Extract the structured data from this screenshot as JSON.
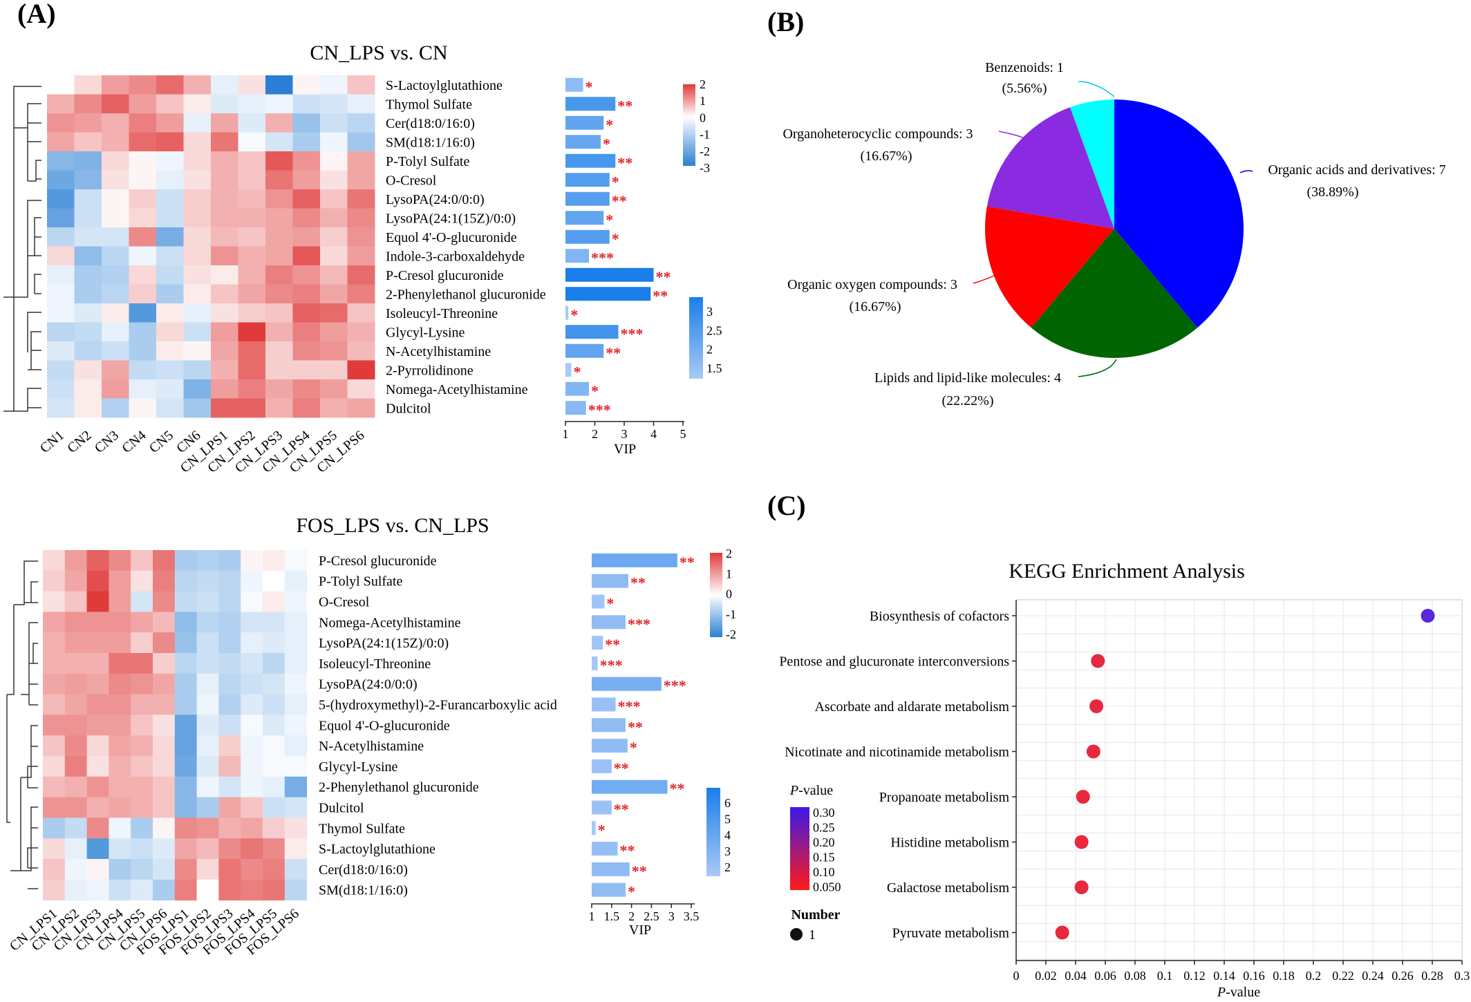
{
  "panel_labels": {
    "a": "(A)",
    "b": "(B)",
    "c": "(C)"
  },
  "chart_data": [
    {
      "id": "heatmap1",
      "type": "heatmap",
      "title": "CN_LPS vs. CN",
      "columns": [
        "CN1",
        "CN2",
        "CN3",
        "CN4",
        "CN5",
        "CN6",
        "CN_LPS1",
        "CN_LPS2",
        "CN_LPS3",
        "CN_LPS4",
        "CN_LPS5",
        "CN_LPS6"
      ],
      "rows": [
        "S-Lactoylglutathione",
        "Thymol Sulfate",
        "Cer(d18:0/16:0)",
        "SM(d18:1/16:0)",
        "P-Tolyl Sulfate",
        "O-Cresol",
        "LysoPA(24:0/0:0)",
        "LysoPA(24:1(15Z)/0:0)",
        "Equol 4'-O-glucuronide",
        "Indole-3-carboxaldehyde",
        "P-Cresol glucuronide",
        "2-Phenylethanol glucuronide",
        "Isoleucyl-Threonine",
        "Glycyl-Lysine",
        "N-Acetylhistamine",
        "2-Pyrrolidinone",
        "Nomega-Acetylhistamine",
        "Dulcitol"
      ],
      "values": [
        [
          0,
          0.4,
          1.0,
          1.2,
          1.5,
          0.8,
          -0.3,
          0.3,
          -2.8,
          0.1,
          -0.2,
          0.6
        ],
        [
          0.8,
          1.2,
          1.6,
          1.0,
          0.6,
          0.2,
          -0.4,
          -0.3,
          -0.2,
          -0.6,
          -0.5,
          -0.3
        ],
        [
          1.1,
          1.0,
          0.8,
          1.3,
          1.0,
          -0.3,
          0.9,
          -0.4,
          0.8,
          -1.2,
          -0.6,
          -0.8
        ],
        [
          0.9,
          0.6,
          0.8,
          1.5,
          1.6,
          0.4,
          1.4,
          -0.1,
          -0.5,
          -1.0,
          -0.2,
          -1.1
        ],
        [
          -1.4,
          -1.5,
          0.4,
          0.1,
          -0.2,
          0.4,
          0.8,
          0.6,
          1.7,
          1.1,
          0.1,
          0.9
        ],
        [
          -1.7,
          -1.4,
          0.3,
          0.1,
          -0.3,
          0.3,
          0.8,
          0.6,
          1.4,
          1.0,
          0.3,
          0.9
        ],
        [
          -2.0,
          -0.6,
          0.1,
          0.5,
          -0.6,
          0.5,
          0.8,
          0.7,
          1.1,
          1.6,
          0.6,
          1.4
        ],
        [
          -1.8,
          -0.6,
          0.1,
          0.4,
          -0.6,
          0.5,
          0.8,
          0.8,
          0.9,
          1.2,
          0.8,
          1.2
        ],
        [
          -0.8,
          -0.5,
          -0.5,
          1.2,
          -1.6,
          0.4,
          0.7,
          0.6,
          0.9,
          1.0,
          0.5,
          1.1
        ],
        [
          0.4,
          -1.3,
          -0.8,
          -0.2,
          -0.6,
          0.4,
          1.1,
          0.8,
          0.9,
          1.7,
          0.4,
          1.0
        ],
        [
          -0.3,
          -1.0,
          -0.9,
          0.4,
          -0.7,
          0.3,
          0.2,
          0.8,
          1.3,
          1.1,
          0.7,
          1.5
        ],
        [
          -0.2,
          -1.0,
          -0.8,
          0.5,
          -1.0,
          0.2,
          0.6,
          0.9,
          1.2,
          1.3,
          0.9,
          1.3
        ],
        [
          -0.2,
          -0.4,
          0.2,
          -2.0,
          0.2,
          -0.3,
          0.3,
          0.5,
          0.6,
          1.6,
          1.5,
          0.6
        ],
        [
          -0.8,
          -0.7,
          -0.3,
          -1.0,
          0.4,
          -0.6,
          1.0,
          2.0,
          0.8,
          1.3,
          1.0,
          0.8
        ],
        [
          -0.4,
          -0.8,
          -0.6,
          -1.0,
          0.2,
          0.1,
          0.9,
          1.5,
          0.5,
          1.2,
          1.1,
          0.7
        ],
        [
          -0.7,
          0.3,
          0.9,
          -0.7,
          -0.6,
          -0.8,
          0.8,
          1.5,
          0.5,
          0.5,
          0.5,
          2.3
        ],
        [
          -0.6,
          0.2,
          1.0,
          -0.3,
          -0.4,
          -1.5,
          1.0,
          1.3,
          0.9,
          1.2,
          1.0,
          0.4
        ],
        [
          -0.5,
          0.2,
          -0.9,
          0.1,
          -0.5,
          -1.1,
          1.6,
          1.6,
          0.8,
          1.3,
          0.8,
          0.9
        ]
      ],
      "color_scale": {
        "ticks": [
          "2",
          "1",
          "0",
          "-1",
          "-2",
          "-3"
        ],
        "low": "#2a7fd4",
        "mid": "#ffffff",
        "high": "#e03a3a"
      }
    },
    {
      "id": "vip1",
      "type": "bar",
      "orientation": "horizontal",
      "categories": [
        "S-Lactoylglutathione",
        "Thymol Sulfate",
        "Cer(d18:0/16:0)",
        "SM(d18:1/16:0)",
        "P-Tolyl Sulfate",
        "O-Cresol",
        "LysoPA(24:0/0:0)",
        "LysoPA(24:1(15Z)/0:0)",
        "Equol 4'-O-glucuronide",
        "Indole-3-carboxaldehyde",
        "P-Cresol glucuronide",
        "2-Phenylethanol glucuronide",
        "Isoleucyl-Threonine",
        "Glycyl-Lysine",
        "N-Acetylhistamine",
        "2-Pyrrolidinone",
        "Nomega-Acetylhistamine",
        "Dulcitol"
      ],
      "values": [
        1.6,
        2.7,
        2.3,
        2.2,
        2.7,
        2.5,
        2.5,
        2.3,
        2.5,
        1.8,
        4.0,
        3.9,
        1.1,
        2.8,
        2.3,
        1.2,
        1.8,
        1.7
      ],
      "significance": [
        "*",
        "**",
        "*",
        "*",
        "**",
        "*",
        "**",
        "*",
        "*",
        "***",
        "**",
        "**",
        "*",
        "***",
        "**",
        "*",
        "*",
        "***"
      ],
      "xlabel": "VIP",
      "xticks": [
        "1",
        "2",
        "3",
        "4",
        "5"
      ],
      "xlim": [
        1,
        5
      ],
      "color_scale": {
        "ticks": [
          "3",
          "2.5",
          "2",
          "1.5"
        ],
        "min": 1.2,
        "max": 3.4
      }
    },
    {
      "id": "heatmap2",
      "type": "heatmap",
      "title": "FOS_LPS vs. CN_LPS",
      "columns": [
        "CN_LPS1",
        "CN_LPS2",
        "CN_LPS3",
        "CN_LPS4",
        "CN_LPS5",
        "CN_LPS6",
        "FOS_LPS1",
        "FOS_LPS2",
        "FOS_LPS3",
        "FOS_LPS4",
        "FOS_LPS5",
        "FOS_LPS6"
      ],
      "rows": [
        "P-Cresol glucuronide",
        "P-Tolyl Sulfate",
        "O-Cresol",
        "Nomega-Acetylhistamine",
        "LysoPA(24:1(15Z)/0:0)",
        "Isoleucyl-Threonine",
        "LysoPA(24:0/0:0)",
        "5-(hydroxymethyl)-2-Furancarboxylic acid",
        "Equol 4'-O-glucuronide",
        "N-Acetylhistamine",
        "Glycyl-Lysine",
        "2-Phenylethanol glucuronide",
        "Dulcitol",
        "Thymol Sulfate",
        "S-Lactoylglutathione",
        "Cer(d18:0/16:0)",
        "SM(d18:1/16:0)"
      ],
      "values": [
        [
          0.4,
          1.0,
          1.6,
          1.2,
          0.6,
          1.4,
          -1.0,
          -0.9,
          -1.0,
          0.1,
          0.2,
          -0.1
        ],
        [
          0.5,
          0.9,
          1.8,
          1.0,
          0.3,
          1.3,
          -0.8,
          -0.7,
          -0.8,
          -0.2,
          0.0,
          -0.3
        ],
        [
          0.3,
          0.6,
          2.0,
          1.0,
          -0.5,
          1.2,
          -0.7,
          -0.6,
          -0.8,
          -0.1,
          0.2,
          -0.2
        ],
        [
          0.9,
          1.1,
          1.1,
          1.1,
          0.9,
          0.7,
          -1.3,
          -0.8,
          -0.9,
          -0.5,
          -0.5,
          -0.3
        ],
        [
          0.8,
          1.0,
          1.0,
          1.0,
          0.5,
          1.2,
          -1.2,
          -0.6,
          -0.9,
          -0.3,
          -0.4,
          -0.3
        ],
        [
          0.8,
          0.8,
          0.8,
          1.4,
          1.4,
          0.5,
          -0.8,
          -0.6,
          -0.7,
          -0.5,
          -0.8,
          -0.3
        ],
        [
          0.9,
          1.0,
          0.9,
          1.2,
          1.1,
          0.9,
          -1.0,
          -0.3,
          -0.8,
          -0.6,
          -0.5,
          -0.2
        ],
        [
          0.7,
          0.9,
          1.1,
          1.1,
          0.8,
          0.8,
          -1.0,
          -0.2,
          -0.9,
          -0.4,
          -0.6,
          -0.3
        ],
        [
          1.1,
          1.1,
          1.0,
          1.0,
          0.6,
          0.3,
          -1.8,
          -0.4,
          -0.6,
          -0.1,
          -0.4,
          -0.2
        ],
        [
          0.6,
          1.2,
          0.4,
          0.9,
          0.8,
          0.4,
          -1.8,
          -0.3,
          0.5,
          -0.2,
          -0.1,
          -0.3
        ],
        [
          0.4,
          1.3,
          0.3,
          0.8,
          0.6,
          0.4,
          -1.7,
          -0.4,
          0.7,
          -0.2,
          -0.1,
          -0.1
        ],
        [
          0.7,
          0.8,
          1.1,
          0.8,
          0.8,
          0.6,
          -1.4,
          -0.2,
          -0.5,
          -0.2,
          -0.3,
          -1.6
        ],
        [
          1.1,
          1.1,
          0.8,
          0.9,
          0.8,
          0.6,
          -1.4,
          -1.0,
          0.9,
          0.6,
          -0.6,
          -0.5
        ],
        [
          -1.0,
          -0.7,
          1.2,
          -0.2,
          -1.0,
          0.1,
          1.2,
          1.1,
          0.8,
          0.9,
          0.5,
          0.3
        ],
        [
          0.4,
          -0.3,
          -2.0,
          -0.5,
          -0.6,
          -0.4,
          0.9,
          0.7,
          1.2,
          1.4,
          1.2,
          0.2
        ],
        [
          0.6,
          -0.2,
          0.1,
          -1.0,
          -0.8,
          -0.5,
          1.2,
          0.4,
          1.4,
          1.2,
          1.3,
          -0.6
        ],
        [
          0.5,
          -0.3,
          -0.2,
          -0.6,
          -0.4,
          -1.0,
          1.3,
          0.0,
          1.4,
          1.3,
          1.4,
          -0.8
        ]
      ],
      "color_scale": {
        "ticks": [
          "2",
          "1",
          "0",
          "-1",
          "-2"
        ],
        "low": "#2a7fd4",
        "mid": "#ffffff",
        "high": "#e03a3a"
      }
    },
    {
      "id": "vip2",
      "type": "bar",
      "orientation": "horizontal",
      "categories": [
        "P-Cresol glucuronide",
        "P-Tolyl Sulfate",
        "O-Cresol",
        "Nomega-Acetylhistamine",
        "LysoPA(24:1(15Z)/0:0)",
        "Isoleucyl-Threonine",
        "LysoPA(24:0/0:0)",
        "5-(hydroxymethyl)-2-Furancarboxylic acid",
        "Equol 4'-O-glucuronide",
        "N-Acetylhistamine",
        "Glycyl-Lysine",
        "2-Phenylethanol glucuronide",
        "Dulcitol",
        "Thymol Sulfate",
        "S-Lactoylglutathione",
        "Cer(d18:0/16:0)",
        "SM(d18:1/16:0)"
      ],
      "values": [
        3.15,
        1.92,
        1.32,
        1.85,
        1.28,
        1.15,
        2.75,
        1.6,
        1.85,
        1.9,
        1.5,
        2.9,
        1.5,
        1.1,
        1.65,
        1.95,
        1.85
      ],
      "significance": [
        "**",
        "**",
        "*",
        "***",
        "**",
        "***",
        "***",
        "***",
        "**",
        "*",
        "**",
        "**",
        "**",
        "*",
        "**",
        "**",
        "*"
      ],
      "xlabel": "VIP",
      "xticks": [
        "1",
        "1.5",
        "2",
        "2.5",
        "3",
        "3.5"
      ],
      "xlim": [
        1,
        3.5
      ],
      "color_scale": {
        "ticks": [
          "6",
          "5",
          "4",
          "3",
          "2"
        ],
        "min": 1.0,
        "max": 6.0
      }
    },
    {
      "id": "pie",
      "type": "pie",
      "slices": [
        {
          "label": "Organic acids and derivatives: 7",
          "pct": "(38.89%)",
          "value": 7,
          "color": "#0000ff"
        },
        {
          "label": "Lipids and lipid-like molecules: 4",
          "pct": "(22.22%)",
          "value": 4,
          "color": "#006400"
        },
        {
          "label": "Organic oxygen compounds: 3",
          "pct": "(16.67%)",
          "value": 3,
          "color": "#ff0000"
        },
        {
          "label": "Organoheterocyclic compounds: 3",
          "pct": "(16.67%)",
          "value": 3,
          "color": "#8a2be2"
        },
        {
          "label": "Benzenoids: 1",
          "pct": "(5.56%)",
          "value": 1,
          "color": "#00ffff"
        }
      ]
    },
    {
      "id": "kegg",
      "type": "scatter",
      "title": "KEGG Enrichment Analysis",
      "xlabel": "P-value",
      "xlim": [
        0,
        0.3
      ],
      "xticks": [
        "0",
        "0.02",
        "0.04",
        "0.06",
        "0.08",
        "0.1",
        "0.12",
        "0.14",
        "0.16",
        "0.18",
        "0.2",
        "0.22",
        "0.24",
        "0.26",
        "0.28",
        "0.3"
      ],
      "categories": [
        "Biosynthesis of cofactors",
        "Pentose and glucuronate interconversions",
        "Ascorbate and aldarate metabolism",
        "Nicotinate and nicotinamide metabolism",
        "Propanoate metabolism",
        "Histidine metabolism",
        "Galactose metabolism",
        "Pyruvate metabolism"
      ],
      "x": [
        0.277,
        0.055,
        0.054,
        0.052,
        0.045,
        0.044,
        0.044,
        0.031
      ],
      "number": [
        1,
        1,
        1,
        1,
        1,
        1,
        1,
        1
      ],
      "legend": {
        "pvalue_title_italic": "P",
        "pvalue_title_rest": "-value",
        "pvalue_ticks": [
          "0.30",
          "0.25",
          "0.20",
          "0.15",
          "0.10",
          "0.050"
        ],
        "number_title": "Number",
        "number_label": "1"
      }
    }
  ]
}
